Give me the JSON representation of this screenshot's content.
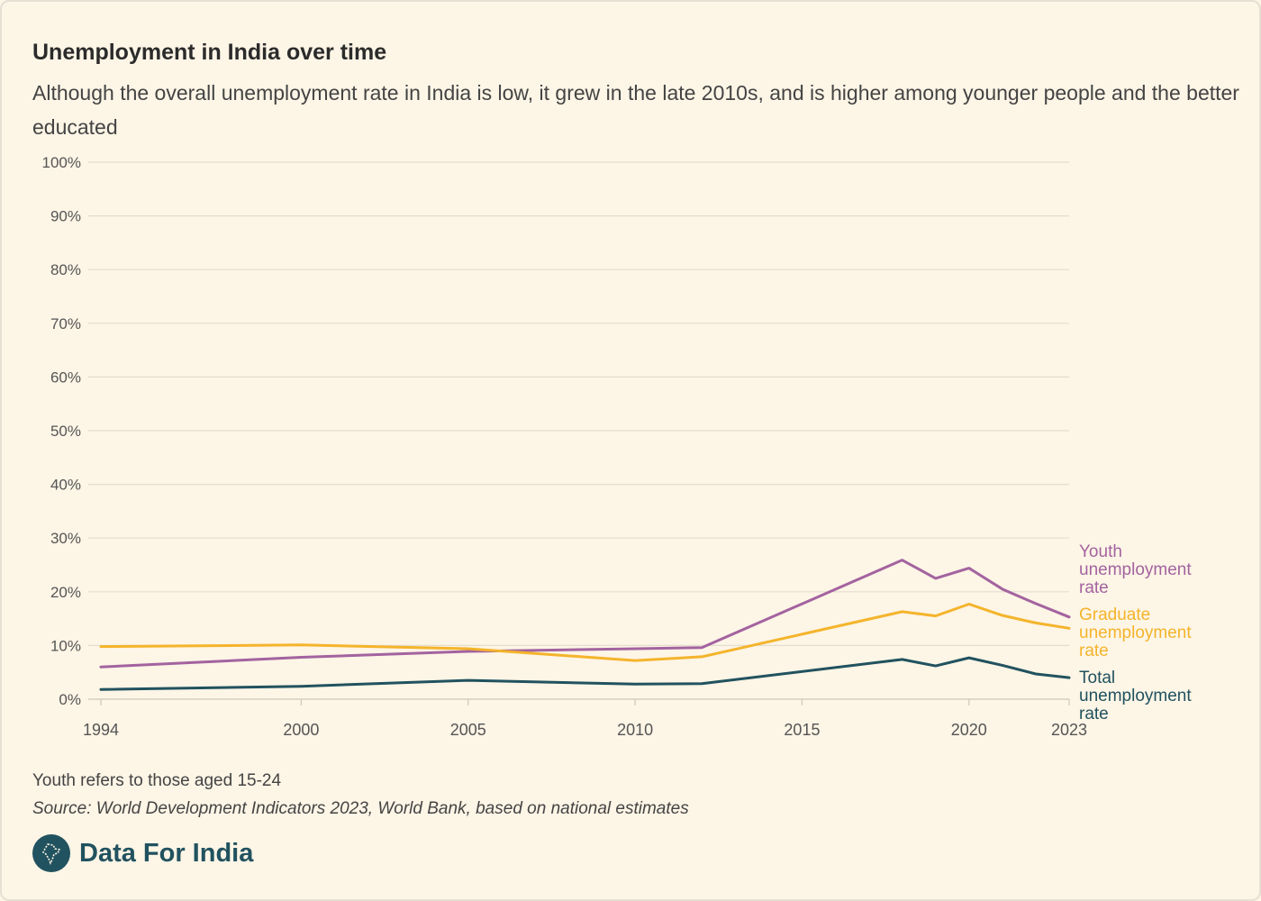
{
  "header": {
    "title": "Unemployment in India over time",
    "subtitle": "Although the overall unemployment rate in India is low, it grew in the late 2010s, and is higher among younger people and the better educated"
  },
  "footer": {
    "note": "Youth refers to those aged 15-24",
    "source": "Source: World Development Indicators 2023, World Bank, based on national estimates",
    "brand": "Data For India",
    "brand_icon": "india-map-logo-icon"
  },
  "chart_data": {
    "type": "line",
    "title": "Unemployment in India over time",
    "xlabel": "",
    "ylabel": "",
    "xlim": [
      1994,
      2023
    ],
    "ylim": [
      0,
      100
    ],
    "y_ticks": [
      0,
      10,
      20,
      30,
      40,
      50,
      60,
      70,
      80,
      90,
      100
    ],
    "y_tick_suffix": "%",
    "x_ticks": [
      1994,
      2000,
      2005,
      2010,
      2015,
      2020,
      2023
    ],
    "grid": true,
    "series": [
      {
        "name": "Youth unemployment rate",
        "label_lines": [
          "Youth",
          "unemployment",
          "rate"
        ],
        "color": "#a3639f",
        "x": [
          1994,
          2000,
          2005,
          2010,
          2012,
          2018,
          2019,
          2020,
          2021,
          2022,
          2023
        ],
        "values": [
          6.0,
          7.8,
          8.9,
          9.4,
          9.6,
          25.9,
          22.5,
          24.4,
          20.5,
          17.8,
          15.3
        ]
      },
      {
        "name": "Graduate unemployment rate",
        "label_lines": [
          "Graduate",
          "unemployment",
          "rate"
        ],
        "color": "#f4b42b",
        "x": [
          1994,
          2000,
          2005,
          2010,
          2012,
          2018,
          2019,
          2020,
          2021,
          2022,
          2023
        ],
        "values": [
          9.8,
          10.1,
          9.4,
          7.2,
          7.9,
          16.3,
          15.5,
          17.7,
          15.6,
          14.2,
          13.2
        ]
      },
      {
        "name": "Total unemployment rate",
        "label_lines": [
          "Total",
          "unemployment",
          "rate"
        ],
        "color": "#21525f",
        "x": [
          1994,
          2000,
          2005,
          2010,
          2012,
          2018,
          2019,
          2020,
          2021,
          2022,
          2023
        ],
        "values": [
          1.8,
          2.4,
          3.5,
          2.8,
          2.9,
          7.4,
          6.2,
          7.7,
          6.3,
          4.7,
          4.0
        ]
      }
    ]
  }
}
